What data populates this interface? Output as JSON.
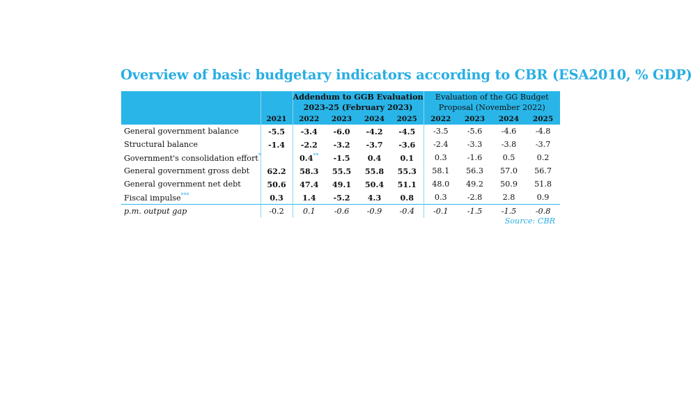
{
  "title": "Overview of basic budgetary indicators according to CBR (ESA2010, % GDP)",
  "groups": {
    "addendum": "Addendum to GGB Evaluation 2023-25 (February 2023)",
    "addendum_line1": "Addendum to GGB Evaluation",
    "addendum_line2": "2023-25 (February 2023)",
    "evaluation_line1": "Evaluation of the GG Budget",
    "evaluation_line2": "Proposal (November 2022)"
  },
  "years": [
    "2021",
    "2022",
    "2023",
    "2024",
    "2025",
    "2022",
    "2023",
    "2024",
    "2025"
  ],
  "rows": [
    {
      "label": "General government balance",
      "note": "",
      "values": [
        "-5.5",
        "-3.4",
        "-6.0",
        "-4.2",
        "-4.5",
        "-3.5",
        "-5.6",
        "-4.6",
        "-4.8"
      ]
    },
    {
      "label": "Structural balance",
      "note": "",
      "values": [
        "-1.4",
        "-2.2",
        "-3.2",
        "-3.7",
        "-3.6",
        "-2.4",
        "-3.3",
        "-3.8",
        "-3.7"
      ]
    },
    {
      "label": "Government's consolidation effort",
      "note": "*",
      "values": [
        "",
        "0.4",
        "-1.5",
        "0.4",
        "0.1",
        "0.3",
        "-1.6",
        "0.5",
        "0.2"
      ],
      "value_note": "**"
    },
    {
      "label": "General government gross debt",
      "note": "",
      "values": [
        "62.2",
        "58.3",
        "55.5",
        "55.8",
        "55.3",
        "58.1",
        "56.3",
        "57.0",
        "56.7"
      ]
    },
    {
      "label": "General government net debt",
      "note": "",
      "values": [
        "50.6",
        "47.4",
        "49.1",
        "50.4",
        "51.1",
        "48.0",
        "49.2",
        "50.9",
        "51.8"
      ]
    },
    {
      "label": "Fiscal impulse",
      "note": "***",
      "values": [
        "0.3",
        "1.4",
        "-5.2",
        "4.3",
        "0.8",
        "0.3",
        "-2.8",
        "2.8",
        "0.9"
      ]
    },
    {
      "label": "p.m. output gap",
      "note": "",
      "values": [
        "-0.2",
        "0.1",
        "-0.6",
        "-0.9",
        "-0.4",
        "-0.1",
        "-1.5",
        "-1.5",
        "-0.8"
      ]
    }
  ],
  "source": "Source: CBR"
}
